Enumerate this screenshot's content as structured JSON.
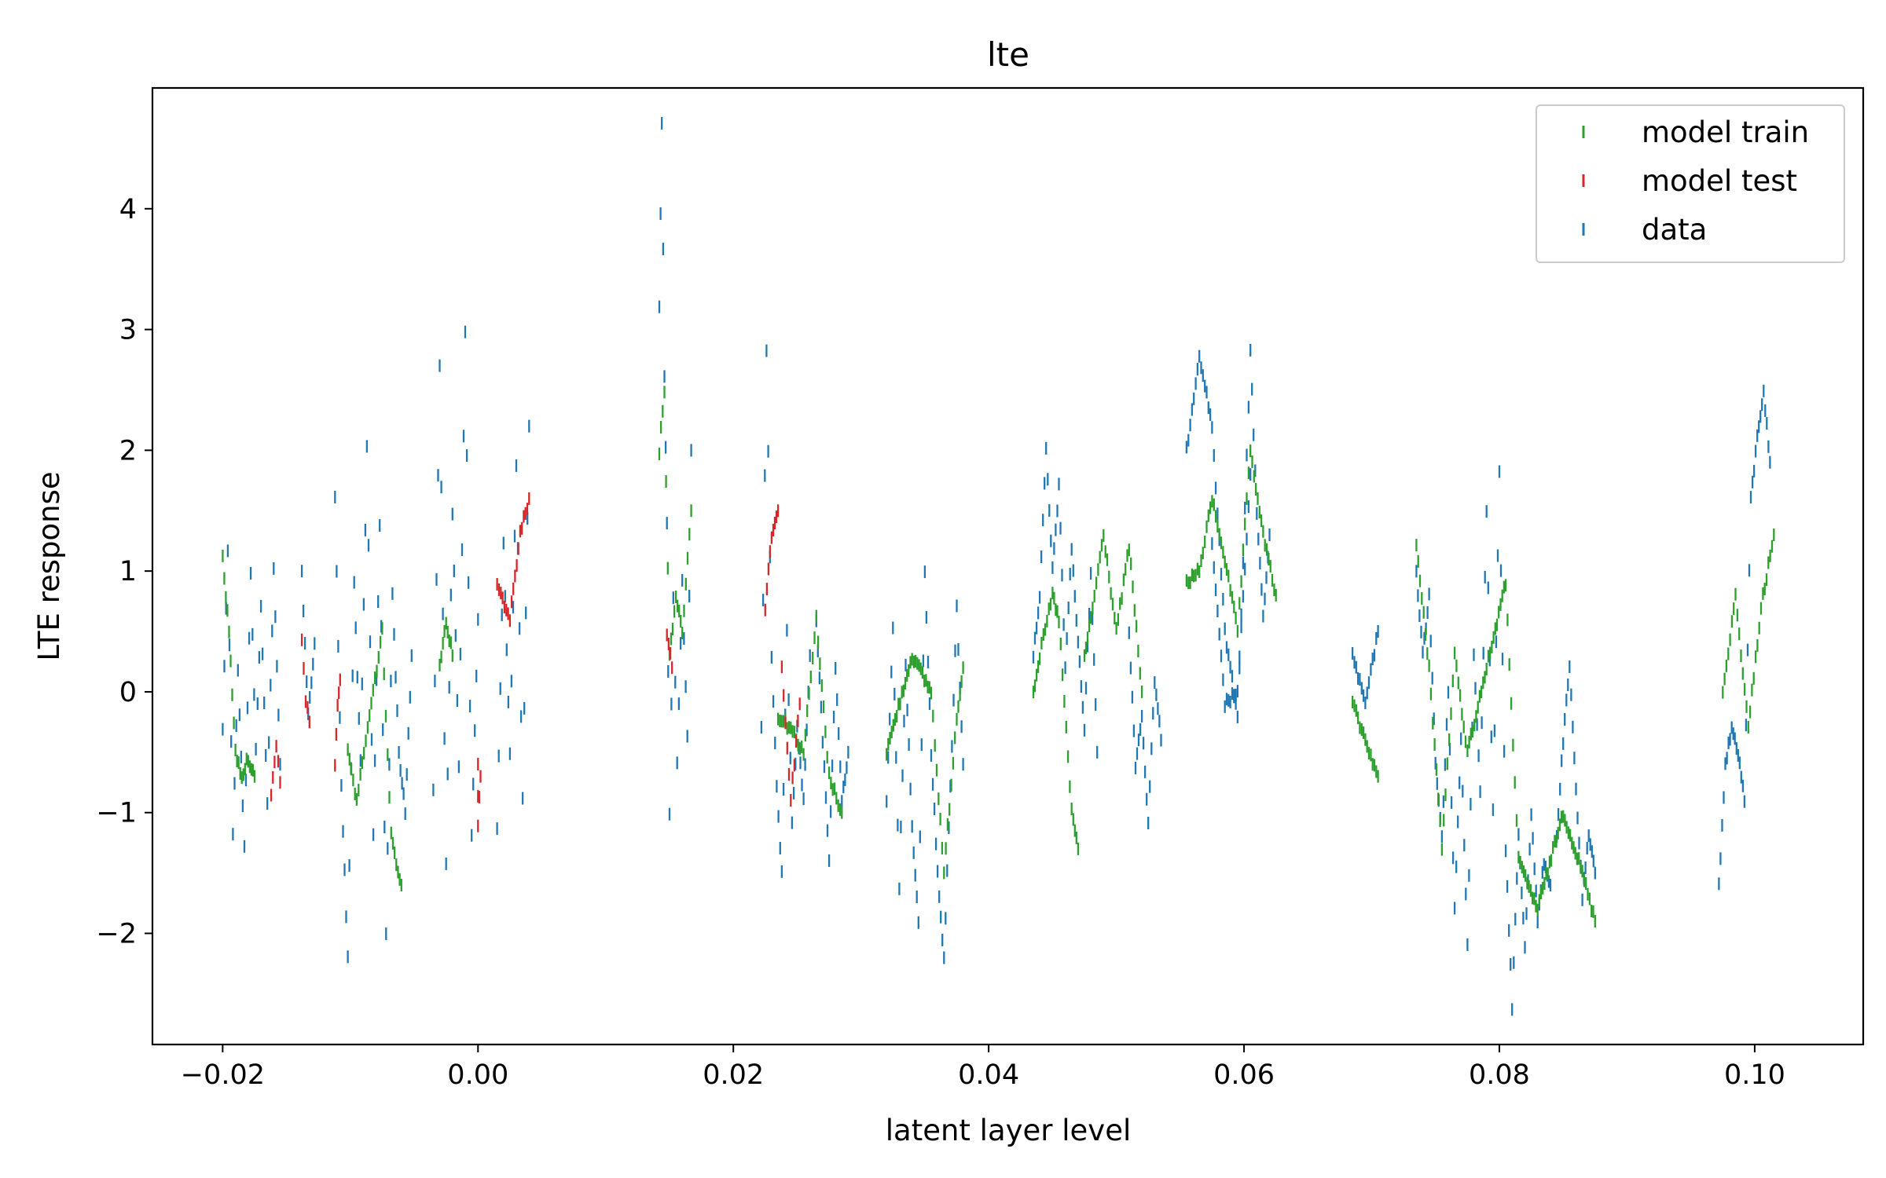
{
  "chart_data": {
    "type": "scatter",
    "marker": "vertical-tick",
    "title": "lte",
    "xlabel": "latent layer level",
    "ylabel": "LTE response",
    "xlim": [
      -0.0255,
      0.1085
    ],
    "ylim": [
      -2.92,
      5.0
    ],
    "xticks": [
      -0.02,
      0.0,
      0.02,
      0.04,
      0.06,
      0.08,
      0.1
    ],
    "xtick_labels": [
      "−0.02",
      "0.00",
      "0.02",
      "0.04",
      "0.06",
      "0.08",
      "0.10"
    ],
    "yticks": [
      -2,
      -1,
      0,
      1,
      2,
      3,
      4
    ],
    "ytick_labels": [
      "−2",
      "−1",
      "0",
      "1",
      "2",
      "3",
      "4"
    ],
    "grid": false,
    "legend_position": "top-right",
    "colors": {
      "model train": "#2ca02c",
      "model test": "#d62728",
      "data": "#1f77b4"
    },
    "series": [
      {
        "name": "model train",
        "color": "#2ca02c",
        "segments": [
          {
            "x": [
              -0.02,
              -0.0195,
              -0.019,
              -0.0185,
              -0.018,
              -0.0175
            ],
            "y": [
              1.1,
              0.5,
              -0.5,
              -0.7,
              -0.55,
              -0.7
            ]
          },
          {
            "x": [
              -0.0102,
              -0.0095,
              -0.0085,
              -0.0075,
              -0.0068,
              -0.006
            ],
            "y": [
              -0.5,
              -0.9,
              -0.2,
              0.5,
              -1.2,
              -1.6
            ]
          },
          {
            "x": [
              -0.003,
              -0.0025,
              -0.002
            ],
            "y": [
              0.2,
              0.6,
              0.3
            ]
          },
          {
            "x": [
              0.0142,
              0.0146,
              0.015,
              0.0155,
              0.016,
              0.0167
            ],
            "y": [
              2.0,
              2.5,
              0.3,
              0.8,
              0.5,
              1.5
            ]
          },
          {
            "x": [
              0.0235,
              0.0245,
              0.0255,
              0.0265,
              0.0275,
              0.0285
            ],
            "y": [
              -0.2,
              -0.3,
              -0.5,
              0.6,
              -0.7,
              -1.0
            ]
          },
          {
            "x": [
              0.032,
              0.034,
              0.0355,
              0.0365,
              0.0375,
              0.038
            ],
            "y": [
              -0.5,
              0.3,
              0.0,
              -1.5,
              -0.2,
              0.2
            ]
          },
          {
            "x": [
              0.0435,
              0.044,
              0.045,
              0.0455,
              0.0465,
              0.047
            ],
            "y": [
              0.0,
              0.3,
              0.8,
              0.6,
              -1.0,
              -1.3
            ]
          },
          {
            "x": [
              0.0475,
              0.048,
              0.049,
              0.05,
              0.051,
              0.052
            ],
            "y": [
              0.3,
              0.6,
              1.3,
              0.5,
              1.2,
              0.0
            ]
          },
          {
            "x": [
              0.0555,
              0.0565,
              0.0575,
              0.0585,
              0.0595,
              0.0605,
              0.0615,
              0.0625
            ],
            "y": [
              0.9,
              1.0,
              1.6,
              1.1,
              0.5,
              2.0,
              1.3,
              0.8
            ]
          },
          {
            "x": [
              0.0685,
              0.0695,
              0.0705
            ],
            "y": [
              -0.1,
              -0.4,
              -0.7
            ]
          },
          {
            "x": [
              0.0735,
              0.0745,
              0.0755,
              0.0765,
              0.0775,
              0.079,
              0.0805,
              0.0815,
              0.083,
              0.085,
              0.0865,
              0.0875
            ],
            "y": [
              1.2,
              0.2,
              -1.3,
              0.3,
              -0.5,
              0.2,
              0.9,
              -1.4,
              -1.8,
              -1.0,
              -1.5,
              -1.9
            ]
          },
          {
            "x": [
              0.0975,
              0.0985,
              0.0995,
              0.1005,
              0.1015
            ],
            "y": [
              0.0,
              0.8,
              -0.3,
              0.7,
              1.3
            ]
          }
        ]
      },
      {
        "name": "model test",
        "color": "#d62728",
        "segments": [
          {
            "x": [
              -0.0162,
              -0.0158,
              -0.0155
            ],
            "y": [
              -0.85,
              -0.45,
              -0.75
            ]
          },
          {
            "x": [
              -0.0138,
              -0.0135,
              -0.0132
            ],
            "y": [
              0.4,
              -0.05,
              -0.25
            ]
          },
          {
            "x": [
              -0.0112,
              -0.011,
              -0.0108
            ],
            "y": [
              -0.6,
              -0.1,
              0.1
            ]
          },
          {
            "x": [
              0.0,
              0.0,
              0.0002
            ],
            "y": [
              -0.6,
              -1.1,
              -0.7
            ]
          },
          {
            "x": [
              0.0015,
              0.0025,
              0.0033,
              0.004
            ],
            "y": [
              0.9,
              0.6,
              1.3,
              1.6
            ]
          },
          {
            "x": [
              0.0225,
              0.023,
              0.0235
            ],
            "y": [
              0.7,
              1.3,
              1.5
            ]
          },
          {
            "x": [
              0.0238,
              0.0245,
              0.0252
            ],
            "y": [
              0.2,
              -0.9,
              -0.1
            ]
          },
          {
            "x": [
              0.0148,
              0.0152
            ],
            "y": [
              0.5,
              0.2
            ]
          }
        ]
      },
      {
        "name": "data",
        "color": "#1f77b4",
        "segments": [
          {
            "x": [
              -0.02,
              -0.0196,
              -0.0192,
              -0.0188,
              -0.0183,
              -0.0178,
              -0.0174,
              -0.017,
              -0.0165,
              -0.016,
              -0.0155
            ],
            "y": [
              -0.3,
              1.2,
              -1.2,
              0.2,
              -1.3,
              1.0,
              -0.5,
              0.7,
              -0.9,
              1.0,
              -0.6
            ]
          },
          {
            "x": [
              -0.0138,
              -0.0133,
              -0.0128
            ],
            "y": [
              1.0,
              -0.2,
              0.4
            ]
          },
          {
            "x": [
              -0.0112,
              -0.0107,
              -0.0102,
              -0.0097,
              -0.0092,
              -0.0087,
              -0.0082,
              -0.0077,
              -0.0072,
              -0.0067,
              -0.0062,
              -0.0057,
              -0.0052
            ],
            "y": [
              1.6,
              -0.8,
              -2.2,
              0.9,
              -0.6,
              2.0,
              -1.2,
              1.4,
              -2.0,
              0.8,
              -0.5,
              -1.0,
              0.3
            ]
          },
          {
            "x": [
              -0.0035,
              -0.003,
              -0.0025,
              -0.002,
              -0.0015,
              -0.001,
              -0.0005,
              0.0
            ],
            "y": [
              -0.8,
              2.7,
              -1.4,
              1.5,
              -0.6,
              3.0,
              -1.2,
              0.6
            ]
          },
          {
            "x": [
              0.0015,
              0.002,
              0.0025,
              0.003,
              0.0035,
              0.004
            ],
            "y": [
              -1.1,
              1.2,
              -0.5,
              1.9,
              -0.9,
              2.2
            ]
          },
          {
            "x": [
              0.0142,
              0.0144,
              0.0146,
              0.0148,
              0.015,
              0.0153,
              0.0156,
              0.016,
              0.0164,
              0.0167
            ],
            "y": [
              3.2,
              4.7,
              2.6,
              1.4,
              -1.0,
              0.8,
              -0.6,
              0.9,
              -0.4,
              2.0
            ]
          },
          {
            "x": [
              0.0222,
              0.0226,
              0.023,
              0.0234,
              0.0238,
              0.0242,
              0.0246,
              0.025,
              0.0255,
              0.026
            ],
            "y": [
              -0.3,
              2.8,
              0.3,
              -0.8,
              -1.5,
              0.5,
              -1.1,
              -0.3,
              -0.9,
              0.3
            ]
          },
          {
            "x": [
              0.0265,
              0.027,
              0.0275,
              0.028,
              0.0285,
              0.029
            ],
            "y": [
              0.6,
              -0.4,
              -1.4,
              0.2,
              -0.9,
              -0.5
            ]
          },
          {
            "x": [
              0.032,
              0.0325,
              0.033,
              0.0335,
              0.034,
              0.0345,
              0.035,
              0.0355,
              0.036,
              0.0365,
              0.037,
              0.0375,
              0.038
            ],
            "y": [
              -0.9,
              0.5,
              -1.6,
              0.2,
              -1.1,
              -1.9,
              1.0,
              -0.5,
              -1.5,
              -2.2,
              -0.8,
              0.7,
              -0.6
            ]
          },
          {
            "x": [
              0.0435,
              0.044,
              0.0445,
              0.045,
              0.0455,
              0.046,
              0.0465,
              0.047,
              0.0475,
              0.048,
              0.0485
            ],
            "y": [
              0.3,
              0.8,
              2.0,
              1.0,
              1.7,
              0.2,
              1.2,
              0.4,
              -0.3,
              1.0,
              -0.5
            ]
          },
          {
            "x": [
              0.051,
              0.0515,
              0.052,
              0.0525,
              0.053,
              0.0535
            ],
            "y": [
              0.5,
              -0.6,
              -0.2,
              -1.1,
              0.1,
              -0.4
            ]
          },
          {
            "x": [
              0.0555,
              0.0565,
              0.0575,
              0.0585,
              0.0595,
              0.0605,
              0.061,
              0.0615,
              0.062
            ],
            "y": [
              2.0,
              2.8,
              2.2,
              0.5,
              -0.2,
              2.8,
              1.5,
              0.6,
              1.3
            ]
          },
          {
            "x": [
              0.0575,
              0.0585,
              0.0595,
              0.0605
            ],
            "y": [
              1.2,
              -0.1,
              0.0,
              1.8
            ]
          },
          {
            "x": [
              0.0685,
              0.0695,
              0.0705
            ],
            "y": [
              0.3,
              -0.1,
              0.5
            ]
          },
          {
            "x": [
              0.0735,
              0.074,
              0.0745,
              0.075,
              0.0755,
              0.076,
              0.0765,
              0.077,
              0.0775,
              0.078,
              0.0785,
              0.079,
              0.0795,
              0.08,
              0.0805,
              0.081,
              0.0815,
              0.082,
              0.0825,
              0.083,
              0.0835,
              0.084
            ],
            "y": [
              1.0,
              0.3,
              0.8,
              -0.6,
              -1.2,
              0.0,
              -1.8,
              -0.4,
              -2.1,
              0.3,
              -0.8,
              1.5,
              -1.0,
              1.8,
              -1.3,
              -2.6,
              -1.2,
              -2.1,
              -1.0,
              -1.9,
              -1.4,
              -1.6
            ]
          },
          {
            "x": [
              0.0845,
              0.085,
              0.0855,
              0.086,
              0.0865,
              0.087,
              0.0875
            ],
            "y": [
              -1.2,
              -0.4,
              0.2,
              -0.8,
              -1.7,
              -1.2,
              -1.5
            ]
          },
          {
            "x": [
              0.0972,
              0.0977,
              0.0982,
              0.0987,
              0.0992,
              0.0997,
              0.1002,
              0.1007,
              0.1012
            ],
            "y": [
              -1.6,
              -0.6,
              -0.3,
              -0.5,
              -0.9,
              1.6,
              2.1,
              2.5,
              1.9
            ]
          }
        ]
      }
    ]
  }
}
